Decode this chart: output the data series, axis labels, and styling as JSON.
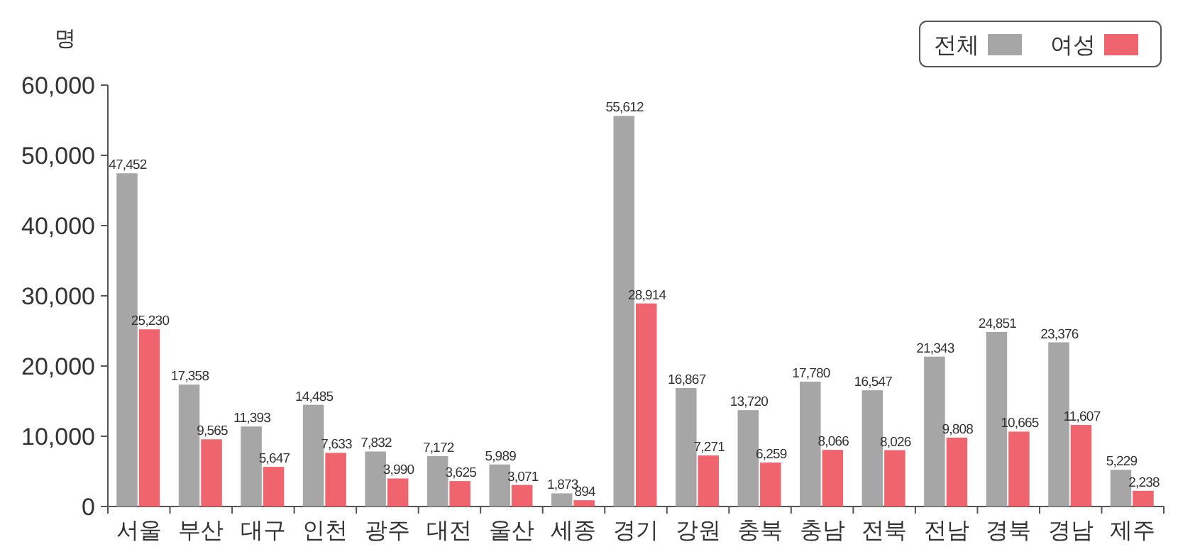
{
  "chart_data": {
    "type": "bar",
    "ylabel": "명",
    "categories": [
      "서울",
      "부산",
      "대구",
      "인천",
      "광주",
      "대전",
      "울산",
      "세종",
      "경기",
      "강원",
      "충북",
      "충남",
      "전북",
      "전남",
      "경북",
      "경남",
      "제주"
    ],
    "series": [
      {
        "name": "전체",
        "color": "#a6a6a6",
        "values": [
          47452,
          17358,
          11393,
          14485,
          7832,
          7172,
          5989,
          1873,
          55612,
          16867,
          13720,
          17780,
          16547,
          21343,
          24851,
          23376,
          5229
        ],
        "value_labels": [
          "47,452",
          "17,358",
          "11,393",
          "14,485",
          "7,832",
          "7,172",
          "5,989",
          "1,873",
          "55,612",
          "16,867",
          "13,720",
          "17,780",
          "16,547",
          "21,343",
          "24,851",
          "23,376",
          "5,229"
        ]
      },
      {
        "name": "여성",
        "color": "#f0646e",
        "values": [
          25230,
          9565,
          5647,
          7633,
          3990,
          3625,
          3071,
          894,
          28914,
          7271,
          6259,
          8066,
          8026,
          9808,
          10665,
          11607,
          2238
        ],
        "value_labels": [
          "25,230",
          "9,565",
          "5,647",
          "7,633",
          "3,990",
          "3,625",
          "3,071",
          "894",
          "28,914",
          "7,271",
          "6,259",
          "8,066",
          "8,026",
          "9,808",
          "10,665",
          "11,607",
          "2,238"
        ]
      }
    ],
    "ylim": [
      0,
      60000
    ],
    "yticks": [
      {
        "value": 0,
        "label": "0"
      },
      {
        "value": 10000,
        "label": "10,000"
      },
      {
        "value": 20000,
        "label": "20,000"
      },
      {
        "value": 30000,
        "label": "30,000"
      },
      {
        "value": 40000,
        "label": "40,000"
      },
      {
        "value": 50000,
        "label": "50,000"
      },
      {
        "value": 60000,
        "label": "60,000"
      }
    ],
    "legend": "top right",
    "grid": false
  }
}
